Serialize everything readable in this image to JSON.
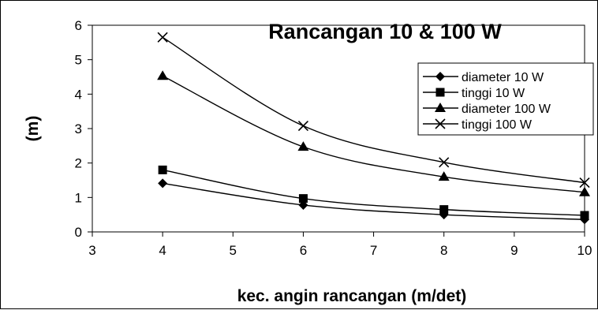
{
  "chart_data": {
    "type": "line",
    "title": "Rancangan 10 & 100 W",
    "xlabel": "kec. angin rancangan (m/det)",
    "ylabel": "(m)",
    "xlim": [
      3,
      10
    ],
    "ylim": [
      0,
      6
    ],
    "xticks": [
      3,
      4,
      5,
      6,
      7,
      8,
      9,
      10
    ],
    "yticks": [
      0,
      1,
      2,
      3,
      4,
      5,
      6
    ],
    "grid": false,
    "legend_position": "right",
    "x": [
      4,
      6,
      8,
      10
    ],
    "series": [
      {
        "name": "diameter 10 W",
        "marker": "diamond",
        "values": [
          1.41,
          0.78,
          0.5,
          0.36
        ]
      },
      {
        "name": "tinggi 10 W",
        "marker": "square",
        "values": [
          1.8,
          0.97,
          0.65,
          0.48
        ]
      },
      {
        "name": "diameter 100 W",
        "marker": "triangle",
        "values": [
          4.53,
          2.47,
          1.6,
          1.15
        ]
      },
      {
        "name": "tinggi 100 W",
        "marker": "x",
        "values": [
          5.65,
          3.08,
          2.02,
          1.43
        ]
      }
    ],
    "line_color": "#000000"
  }
}
